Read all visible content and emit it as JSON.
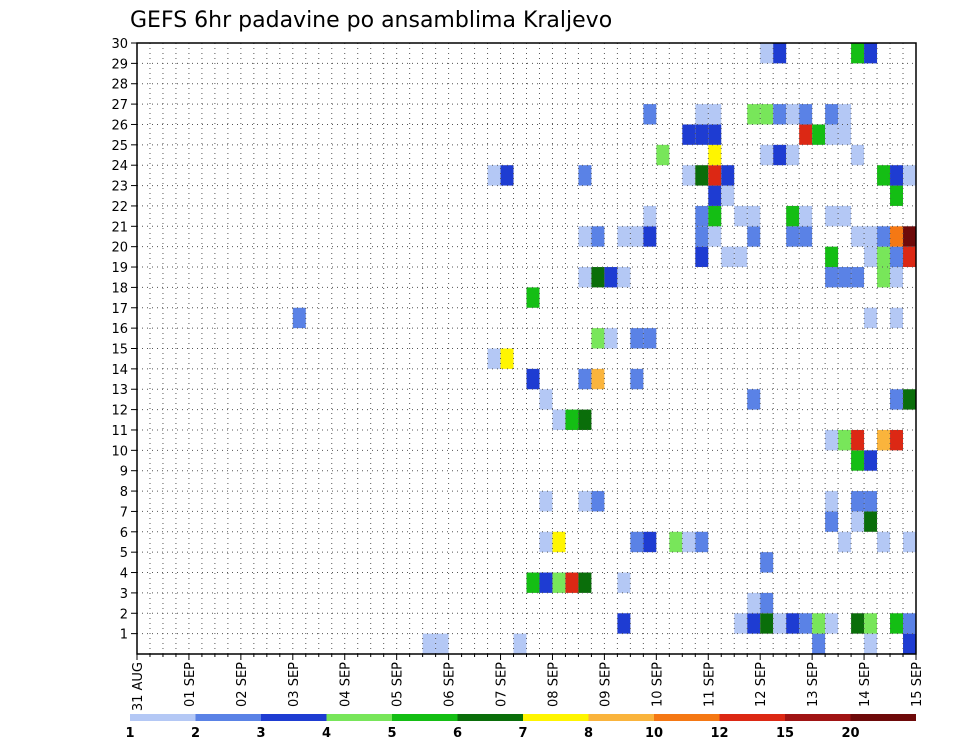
{
  "chart_data": {
    "type": "heatmap",
    "title": "GEFS 6hr padavine po ansamblima Kraljevo",
    "x_ticks": [
      "31 AUG",
      "01 SEP",
      "02 SEP",
      "03 SEP",
      "04 SEP",
      "05 SEP",
      "06 SEP",
      "07 SEP",
      "08 SEP",
      "09 SEP",
      "10 SEP",
      "11 SEP",
      "12 SEP",
      "13 SEP",
      "14 SEP",
      "15 SEP"
    ],
    "x_range_days": [
      0,
      15
    ],
    "time_step_hours": 6,
    "y_ticks": [
      1,
      2,
      3,
      4,
      5,
      6,
      7,
      8,
      9,
      10,
      11,
      12,
      13,
      14,
      15,
      16,
      17,
      18,
      19,
      20,
      21,
      22,
      23,
      24,
      25,
      26,
      27,
      28,
      29,
      30
    ],
    "y_range": [
      0,
      30
    ],
    "grid": "dotted",
    "colorbar": {
      "labels": [
        "1",
        "2",
        "3",
        "4",
        "5",
        "6",
        "7",
        "8",
        "10",
        "12",
        "15",
        "20"
      ],
      "colors": [
        "#b4c8f5",
        "#5a82e6",
        "#1e3cd2",
        "#78e65a",
        "#14be14",
        "#0a6e0a",
        "#fff500",
        "#fab43c",
        "#f57814",
        "#dc2814",
        "#a01414",
        "#6e0a0a"
      ]
    },
    "cells": [
      [
        5.5,
        0,
        1
      ],
      [
        5.75,
        0,
        1
      ],
      [
        7.25,
        0,
        1
      ],
      [
        13,
        0,
        2
      ],
      [
        14,
        0,
        1
      ],
      [
        14.75,
        0,
        3
      ],
      [
        9.25,
        1,
        3
      ],
      [
        11.5,
        1,
        1
      ],
      [
        11.75,
        1,
        3
      ],
      [
        12,
        1,
        6
      ],
      [
        12.25,
        1,
        1
      ],
      [
        12.5,
        1,
        3
      ],
      [
        12.75,
        1,
        2
      ],
      [
        13,
        1,
        4
      ],
      [
        13.25,
        1,
        1
      ],
      [
        13.75,
        1,
        6
      ],
      [
        14,
        1,
        4
      ],
      [
        14.5,
        1,
        5
      ],
      [
        14.75,
        1,
        2
      ],
      [
        11.75,
        2,
        1
      ],
      [
        12,
        2,
        2
      ],
      [
        7.5,
        3,
        5
      ],
      [
        7.75,
        3,
        3
      ],
      [
        8,
        3,
        4
      ],
      [
        8.25,
        3,
        10
      ],
      [
        8.5,
        3,
        6
      ],
      [
        9.25,
        3,
        1
      ],
      [
        12,
        4,
        2
      ],
      [
        7.75,
        5,
        1
      ],
      [
        8,
        5,
        7
      ],
      [
        9.5,
        5,
        2
      ],
      [
        9.75,
        5,
        3
      ],
      [
        10.25,
        5,
        4
      ],
      [
        10.5,
        5,
        1
      ],
      [
        10.75,
        5,
        2
      ],
      [
        13.5,
        5,
        1
      ],
      [
        14.25,
        5,
        1
      ],
      [
        14.75,
        5,
        1
      ],
      [
        13.25,
        6,
        2
      ],
      [
        13.75,
        6,
        1
      ],
      [
        14,
        6,
        6
      ],
      [
        7.75,
        7,
        1
      ],
      [
        8.5,
        7,
        1
      ],
      [
        8.75,
        7,
        2
      ],
      [
        13.25,
        7,
        1
      ],
      [
        13.75,
        7,
        2
      ],
      [
        14,
        7,
        2
      ],
      [
        13.75,
        9,
        5
      ],
      [
        14,
        9,
        3
      ],
      [
        13.25,
        10,
        1
      ],
      [
        13.5,
        10,
        4
      ],
      [
        13.75,
        10,
        10
      ],
      [
        14.25,
        10,
        8
      ],
      [
        14.5,
        10,
        10
      ],
      [
        8,
        11,
        1
      ],
      [
        8.25,
        11,
        5
      ],
      [
        8.5,
        11,
        6
      ],
      [
        7.75,
        12,
        1
      ],
      [
        11.75,
        12,
        2
      ],
      [
        14.5,
        12,
        2
      ],
      [
        14.75,
        12,
        6
      ],
      [
        7.5,
        13,
        3
      ],
      [
        8.5,
        13,
        2
      ],
      [
        8.75,
        13,
        8
      ],
      [
        9.5,
        13,
        2
      ],
      [
        6.75,
        14,
        1
      ],
      [
        7,
        14,
        7
      ],
      [
        8.75,
        15,
        4
      ],
      [
        9,
        15,
        1
      ],
      [
        9.5,
        15,
        2
      ],
      [
        9.75,
        15,
        2
      ],
      [
        3,
        16,
        2
      ],
      [
        14,
        16,
        1
      ],
      [
        14.5,
        16,
        1
      ],
      [
        7.5,
        17,
        5
      ],
      [
        8.5,
        18,
        1
      ],
      [
        8.75,
        18,
        6
      ],
      [
        9,
        18,
        3
      ],
      [
        9.25,
        18,
        1
      ],
      [
        13.25,
        18,
        2
      ],
      [
        13.5,
        18,
        2
      ],
      [
        13.75,
        18,
        2
      ],
      [
        14.25,
        18,
        4
      ],
      [
        14.5,
        18,
        1
      ],
      [
        10.75,
        19,
        3
      ],
      [
        11.25,
        19,
        1
      ],
      [
        11.5,
        19,
        1
      ],
      [
        13.25,
        19,
        5
      ],
      [
        14,
        19,
        1
      ],
      [
        14.25,
        19,
        4
      ],
      [
        14.5,
        19,
        2
      ],
      [
        14.75,
        19,
        10
      ],
      [
        8.5,
        20,
        1
      ],
      [
        8.75,
        20,
        2
      ],
      [
        9.25,
        20,
        1
      ],
      [
        9.5,
        20,
        1
      ],
      [
        9.75,
        20,
        3
      ],
      [
        10.75,
        20,
        2
      ],
      [
        11,
        20,
        1
      ],
      [
        11.75,
        20,
        2
      ],
      [
        12.5,
        20,
        2
      ],
      [
        12.75,
        20,
        2
      ],
      [
        13.75,
        20,
        1
      ],
      [
        14,
        20,
        1
      ],
      [
        14.25,
        20,
        2
      ],
      [
        14.5,
        20,
        9
      ],
      [
        14.75,
        20,
        12
      ],
      [
        9.75,
        21,
        1
      ],
      [
        10.75,
        21,
        2
      ],
      [
        11,
        21,
        5
      ],
      [
        11.5,
        21,
        1
      ],
      [
        11.75,
        21,
        1
      ],
      [
        12.5,
        21,
        5
      ],
      [
        12.75,
        21,
        1
      ],
      [
        13.25,
        21,
        1
      ],
      [
        13.5,
        21,
        1
      ],
      [
        11,
        22,
        3
      ],
      [
        14.5,
        22,
        5
      ],
      [
        11.25,
        22,
        1
      ],
      [
        6.75,
        23,
        1
      ],
      [
        7,
        23,
        3
      ],
      [
        8.5,
        23,
        2
      ],
      [
        10.5,
        23,
        1
      ],
      [
        10.75,
        23,
        6
      ],
      [
        11,
        23,
        10
      ],
      [
        11.25,
        23,
        3
      ],
      [
        14.25,
        23,
        5
      ],
      [
        14.5,
        23,
        3
      ],
      [
        14.75,
        23,
        1
      ],
      [
        10,
        24,
        4
      ],
      [
        11,
        24,
        7
      ],
      [
        12,
        24,
        1
      ],
      [
        12.25,
        24,
        3
      ],
      [
        12.5,
        24,
        1
      ],
      [
        13.75,
        24,
        1
      ],
      [
        10.5,
        25,
        3
      ],
      [
        10.75,
        25,
        3
      ],
      [
        11,
        25,
        3
      ],
      [
        12.75,
        25,
        10
      ],
      [
        13,
        25,
        5
      ],
      [
        13.25,
        25,
        1
      ],
      [
        13.5,
        25,
        1
      ],
      [
        9.75,
        26,
        2
      ],
      [
        10.75,
        26,
        1
      ],
      [
        11,
        26,
        1
      ],
      [
        11.75,
        26,
        4
      ],
      [
        12,
        26,
        4
      ],
      [
        12.25,
        26,
        2
      ],
      [
        12.5,
        26,
        1
      ],
      [
        12.75,
        26,
        2
      ],
      [
        13.25,
        26,
        2
      ],
      [
        13.5,
        26,
        1
      ],
      [
        12,
        29,
        1
      ],
      [
        12.25,
        29,
        3
      ],
      [
        13.75,
        29,
        5
      ],
      [
        14,
        29,
        3
      ]
    ]
  }
}
